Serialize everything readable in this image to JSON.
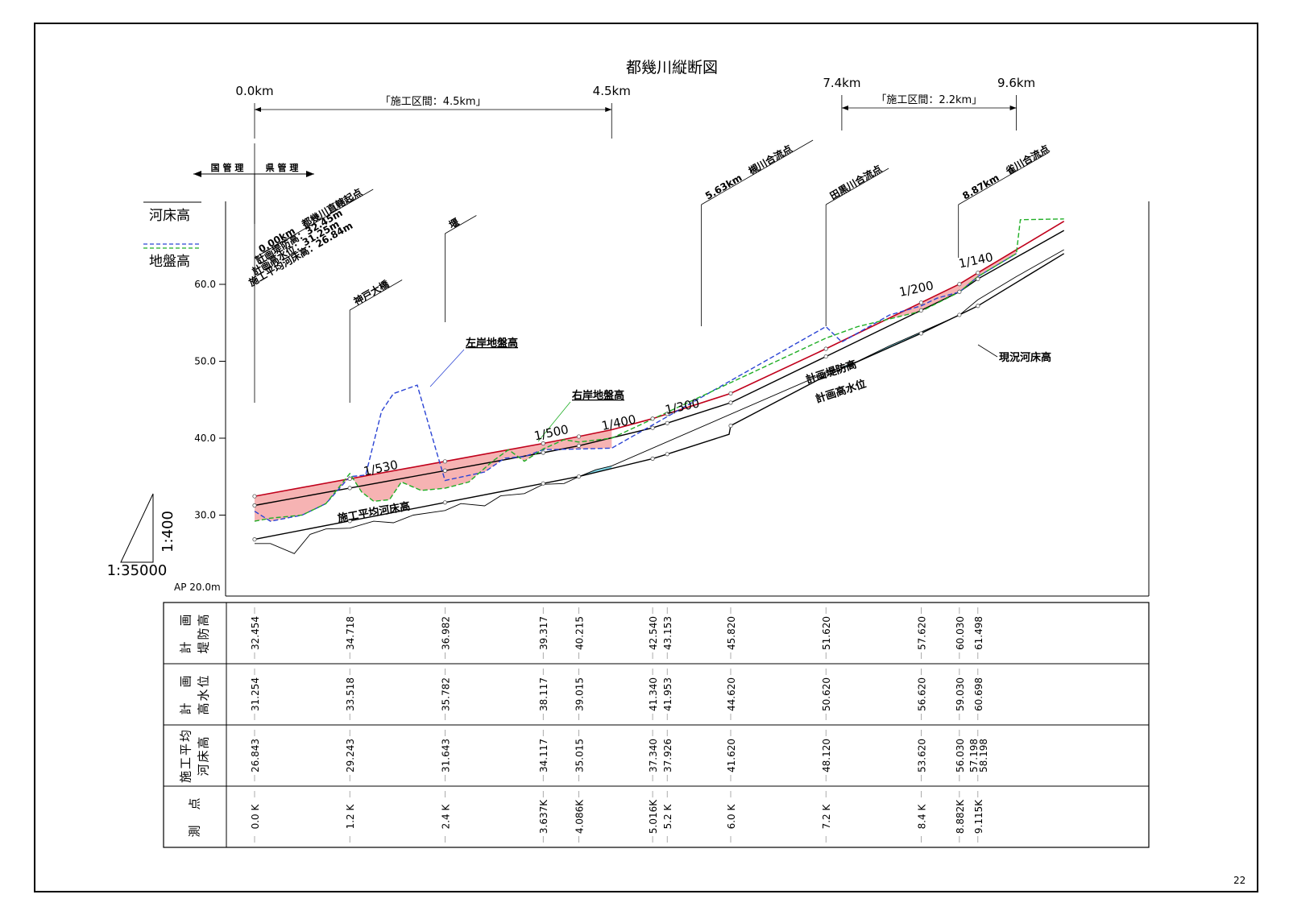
{
  "page_number": "22",
  "chart_data": {
    "type": "line",
    "title": "都幾川縦断図",
    "ylabel": "",
    "ylim": [
      20,
      72
    ],
    "xlim": [
      0,
      10.2
    ],
    "y_ticks": [
      "30.0",
      "40.0",
      "50.0",
      "60.0"
    ],
    "datum_label": "AP 20.0m",
    "scale": {
      "vertical": "1:400",
      "horizontal": "1:35000"
    },
    "legend": [
      {
        "name": "河床高",
        "style": "solid"
      },
      {
        "name": "地盤高",
        "style": "dashed"
      }
    ],
    "colors": {
      "plan_levee_fill": "#f4a6a6",
      "plan_levee_line": "#c0001b",
      "left_ground": "#2b44d4",
      "right_ground": "#1fae25",
      "current_bed_fill": "#7fd6e6",
      "line": "#000000"
    },
    "top_markers": [
      {
        "label": "0.0km",
        "km": 0
      },
      {
        "label": "4.5km",
        "km": 4.5
      },
      {
        "label": "7.4km",
        "km": 7.4
      },
      {
        "label": "9.6km",
        "km": 9.6
      }
    ],
    "sections": [
      {
        "label": "「施工区間：4.5km」",
        "from": 0,
        "to": 4.5
      },
      {
        "label": "「施工区間：2.2km」",
        "from": 7.4,
        "to": 9.6
      }
    ],
    "jurisdiction": {
      "left": "国 管 理",
      "right": "県 管 理"
    },
    "annotations": [
      {
        "text": "0.00km　都幾川直轄起点",
        "km": 0
      },
      {
        "text": "計画堤防高：32.45m",
        "km": 0
      },
      {
        "text": "計画高水位：31.25m",
        "km": 0
      },
      {
        "text": "施工平均河床高：26.84m",
        "km": 0
      },
      {
        "text": "神戸大橋",
        "km": 1.2
      },
      {
        "text": "堰",
        "km": 2.4
      },
      {
        "text": "5.63km　槻川合流点",
        "km": 5.63
      },
      {
        "text": "田黒川合流点",
        "km": 7.2
      },
      {
        "text": "8.87km　雀川合流点",
        "km": 8.87
      }
    ],
    "series_labels": {
      "left_ground": "左岸地盤高",
      "right_ground": "右岸地盤高",
      "plan_levee": "計画堤防高",
      "plan_hwl": "計画高水位",
      "plan_bed": "施工平均河床高",
      "current_bed": "現況河床高"
    },
    "gradients": [
      {
        "label": "1/530",
        "km": 1.6,
        "y": 35.6
      },
      {
        "label": "1/500",
        "km": 3.75,
        "y": 40.2
      },
      {
        "label": "1/400",
        "km": 4.6,
        "y": 41.5
      },
      {
        "label": "1/300",
        "km": 5.4,
        "y": 43.6
      },
      {
        "label": "1/200",
        "km": 8.35,
        "y": 58.9
      },
      {
        "label": "1/140",
        "km": 9.1,
        "y": 62.6
      }
    ],
    "series": [
      {
        "name": "計画堤防高",
        "x": [
          0,
          1.2,
          2.4,
          3.637,
          4.086,
          4.5,
          5.016,
          5.2,
          6.0,
          7.2,
          8.4,
          8.882,
          9.115,
          10.2
        ],
        "y": [
          32.454,
          34.718,
          36.982,
          39.317,
          40.215,
          41.1,
          42.54,
          43.153,
          45.82,
          51.62,
          57.62,
          60.03,
          61.498,
          68.2
        ]
      },
      {
        "name": "計画高水位",
        "x": [
          0,
          1.2,
          2.4,
          3.637,
          4.086,
          5.016,
          5.2,
          6.0,
          7.2,
          8.4,
          8.882,
          9.115,
          10.2
        ],
        "y": [
          31.254,
          33.518,
          35.782,
          38.117,
          39.015,
          41.34,
          41.953,
          44.62,
          50.62,
          56.62,
          59.03,
          60.698,
          67.0
        ]
      },
      {
        "name": "施工平均河床高",
        "x": [
          0,
          1.2,
          2.4,
          3.637,
          4.086,
          5.016,
          5.2,
          5.98,
          6.0,
          7.2,
          8.4,
          8.882,
          9.115,
          10.2
        ],
        "y": [
          26.843,
          29.243,
          31.643,
          34.117,
          35.015,
          37.34,
          37.926,
          40.5,
          41.62,
          48.12,
          53.62,
          56.03,
          57.198,
          64.0
        ]
      },
      {
        "name": "現況河床高",
        "x": [
          0,
          0.2,
          0.5,
          0.7,
          0.9,
          1.2,
          1.5,
          1.75,
          2.0,
          2.4,
          2.6,
          2.9,
          3.1,
          3.4,
          3.637,
          3.9,
          4.086,
          4.3,
          4.5,
          7.2,
          7.6,
          8.0,
          8.4,
          8.882,
          9.115,
          9.6,
          10.2
        ],
        "y": [
          26.3,
          26.3,
          25.0,
          27.5,
          28.2,
          28.3,
          29.2,
          29.0,
          30.0,
          30.6,
          31.5,
          31.2,
          32.5,
          32.8,
          34.0,
          34.1,
          35.0,
          35.9,
          36.4,
          48.5,
          50.0,
          52.0,
          53.8,
          56.0,
          58.0,
          61.0,
          64.5
        ]
      },
      {
        "name": "左岸地盤高",
        "x": [
          0,
          0.2,
          0.6,
          0.9,
          1.2,
          1.4,
          1.6,
          1.75,
          2.05,
          2.3,
          2.4,
          2.9,
          3.15,
          3.4,
          3.637,
          4.086,
          4.5,
          7.2,
          7.4,
          8.0,
          8.4,
          8.6,
          8.882,
          9.115,
          9.6
        ],
        "y": [
          30.5,
          29.2,
          30.0,
          31.5,
          35.0,
          35.2,
          43.5,
          45.8,
          46.9,
          38.0,
          34.5,
          35.6,
          37.4,
          37.6,
          38.5,
          38.6,
          38.7,
          54.5,
          52.5,
          56.0,
          57.2,
          58.2,
          59.0,
          61.0,
          64.0
        ]
      },
      {
        "name": "右岸地盤高",
        "x": [
          0,
          0.2,
          0.6,
          0.9,
          1.2,
          1.35,
          1.5,
          1.7,
          1.85,
          2.1,
          2.4,
          2.7,
          3.0,
          3.2,
          3.4,
          3.637,
          3.9,
          4.086,
          4.5,
          7.2,
          7.6,
          8.0,
          8.4,
          8.882,
          9.115,
          9.6,
          9.65,
          10.2
        ],
        "y": [
          29.2,
          29.6,
          30.0,
          31.5,
          35.4,
          33.0,
          31.8,
          32.0,
          34.3,
          33.2,
          33.5,
          34.3,
          37.0,
          38.5,
          37.0,
          38.6,
          39.8,
          39.5,
          40.0,
          53.0,
          54.5,
          55.5,
          56.5,
          59.0,
          61.0,
          64.0,
          68.4,
          68.5
        ]
      }
    ],
    "table": {
      "row_headers": [
        [
          "計　画",
          "堤防高"
        ],
        [
          "計　画",
          "高水位"
        ],
        [
          "施工平均",
          "河床高"
        ],
        [
          "測　点",
          ""
        ]
      ],
      "stations": [
        {
          "km": 0,
          "point": "0.0 K",
          "levee": [
            "32.454"
          ],
          "hwl": [
            "31.254"
          ],
          "bed": [
            "26.843"
          ]
        },
        {
          "km": 1.2,
          "point": "1.2 K",
          "levee": [
            "34.718"
          ],
          "hwl": [
            "33.518"
          ],
          "bed": [
            "29.243"
          ]
        },
        {
          "km": 2.4,
          "point": "2.4 K",
          "levee": [
            "36.982"
          ],
          "hwl": [
            "35.782"
          ],
          "bed": [
            "31.643"
          ]
        },
        {
          "km": 3.637,
          "point": "3.637K",
          "levee": [
            "39.317"
          ],
          "hwl": [
            "38.117"
          ],
          "bed": [
            "34.117"
          ]
        },
        {
          "km": 4.086,
          "point": "4.086K",
          "levee": [
            "40.215"
          ],
          "hwl": [
            "39.015"
          ],
          "bed": [
            "35.015"
          ]
        },
        {
          "km": 5.016,
          "point": "5.016K",
          "levee": [
            "42.540"
          ],
          "hwl": [
            "41.340"
          ],
          "bed": [
            "37.340"
          ]
        },
        {
          "km": 5.2,
          "point": "5.2 K",
          "levee": [
            "43.153"
          ],
          "hwl": [
            "41.953"
          ],
          "bed": [
            "37.926"
          ]
        },
        {
          "km": 6.0,
          "point": "6.0 K",
          "levee": [
            "45.820"
          ],
          "hwl": [
            "44.620"
          ],
          "bed": [
            "41.620"
          ]
        },
        {
          "km": 7.2,
          "point": "7.2 K",
          "levee": [
            "51.620"
          ],
          "hwl": [
            "50.620"
          ],
          "bed": [
            "48.120"
          ]
        },
        {
          "km": 8.4,
          "point": "8.4 K",
          "levee": [
            "57.620"
          ],
          "hwl": [
            "56.620"
          ],
          "bed": [
            "53.620"
          ]
        },
        {
          "km": 8.882,
          "point": "8.882K",
          "levee": [
            "60.030"
          ],
          "hwl": [
            "59.030"
          ],
          "bed": [
            "56.030"
          ]
        },
        {
          "km": 9.115,
          "point": "9.115K",
          "levee": [
            "61.498"
          ],
          "hwl": [
            "60.698"
          ],
          "bed": [
            "57.198",
            "58.198"
          ]
        }
      ]
    }
  }
}
